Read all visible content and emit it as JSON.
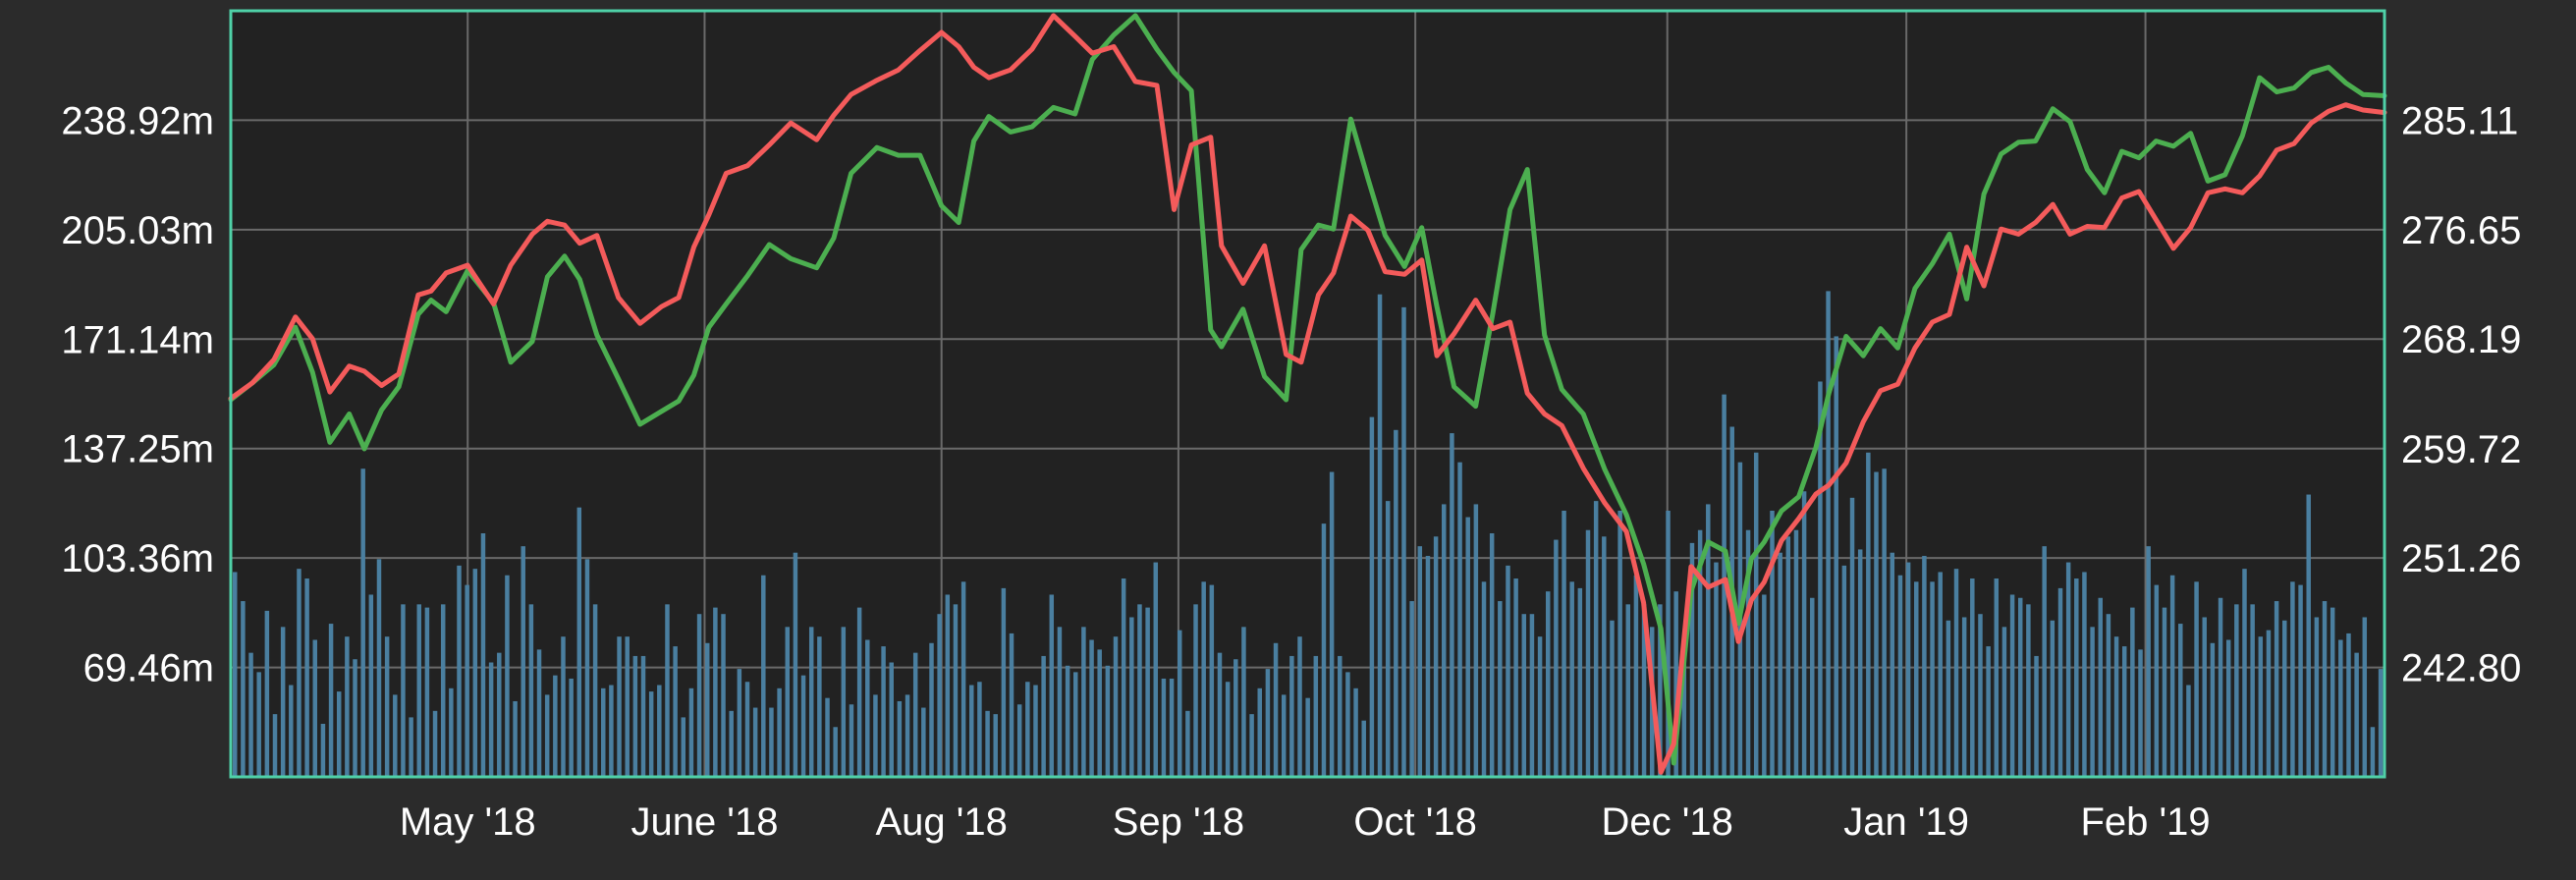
{
  "chart_data": {
    "type": "line",
    "title": "",
    "xlabel": "",
    "left_axis": {
      "label": "",
      "ticks": [
        "69.46m",
        "103.36m",
        "137.25m",
        "171.14m",
        "205.03m",
        "238.92m"
      ],
      "tick_values": [
        69.46,
        103.36,
        137.25,
        171.14,
        205.03,
        238.92
      ],
      "range": [
        35.57,
        272.81
      ],
      "unit": "m"
    },
    "right_axis": {
      "label": "",
      "ticks": [
        "242.80",
        "251.26",
        "259.72",
        "268.19",
        "276.65",
        "285.11"
      ],
      "tick_values": [
        242.8,
        251.26,
        259.72,
        268.19,
        276.65,
        285.11
      ],
      "range": [
        234.34,
        293.57
      ]
    },
    "x_axis": {
      "tick_labels": [
        "May '18",
        "June '18",
        "Aug '18",
        "Sep '18",
        "Oct '18",
        "Dec '18",
        "Jan '19",
        "Feb '19"
      ],
      "tick_positions": [
        0.11,
        0.22,
        0.33,
        0.44,
        0.55,
        0.667,
        0.778,
        0.889
      ]
    },
    "grid": true,
    "colors": {
      "background": "#2b2b2b",
      "plot_background": "#222222",
      "grid": "#6a6a6a",
      "frame": "#4fd1a8",
      "text": "#ffffff",
      "series_green": "#4caf50",
      "series_red": "#f45b5b",
      "volume": "#4a7fa0"
    },
    "series": [
      {
        "color": "#4caf50",
        "axis": "right",
        "x": [
          0,
          0.01,
          0.02,
          0.03,
          0.038,
          0.046,
          0.055,
          0.062,
          0.07,
          0.078,
          0.087,
          0.093,
          0.1,
          0.11,
          0.122,
          0.13,
          0.14,
          0.147,
          0.155,
          0.162,
          0.17,
          0.18,
          0.19,
          0.2,
          0.208,
          0.215,
          0.222,
          0.23,
          0.24,
          0.25,
          0.26,
          0.272,
          0.28,
          0.288,
          0.3,
          0.31,
          0.32,
          0.33,
          0.338,
          0.345,
          0.352,
          0.362,
          0.372,
          0.382,
          0.392,
          0.4,
          0.41,
          0.42,
          0.43,
          0.438,
          0.446,
          0.455,
          0.46,
          0.47,
          0.48,
          0.49,
          0.497,
          0.505,
          0.512,
          0.52,
          0.528,
          0.536,
          0.545,
          0.553,
          0.56,
          0.568,
          0.578,
          0.586,
          0.594,
          0.602,
          0.61,
          0.618,
          0.628,
          0.638,
          0.648,
          0.656,
          0.664,
          0.67,
          0.678,
          0.686,
          0.694,
          0.7,
          0.706,
          0.712,
          0.72,
          0.728,
          0.736,
          0.742,
          0.75,
          0.758,
          0.766,
          0.774,
          0.782,
          0.79,
          0.798,
          0.806,
          0.814,
          0.822,
          0.83,
          0.838,
          0.846,
          0.854,
          0.862,
          0.87,
          0.878,
          0.886,
          0.894,
          0.902,
          0.91,
          0.918,
          0.926,
          0.934,
          0.942,
          0.95,
          0.958,
          0.966,
          0.974,
          0.982,
          0.99,
          1.0
        ],
        "y": [
          263.5,
          264.8,
          266.2,
          269.1,
          265.6,
          260.2,
          262.4,
          259.7,
          262.7,
          264.5,
          270.1,
          271.2,
          270.3,
          273.5,
          271.0,
          266.4,
          268.0,
          273.0,
          274.6,
          272.8,
          268.5,
          265.1,
          261.6,
          262.6,
          263.4,
          265.4,
          269.1,
          270.9,
          273.1,
          275.5,
          274.4,
          273.7,
          276.0,
          281.0,
          283.0,
          282.4,
          282.4,
          278.5,
          277.2,
          283.5,
          285.4,
          284.2,
          284.6,
          286.1,
          285.6,
          289.8,
          291.7,
          293.2,
          290.6,
          288.8,
          287.4,
          268.9,
          267.6,
          270.5,
          265.3,
          263.5,
          275.1,
          277.0,
          276.7,
          285.2,
          280.6,
          276.2,
          273.8,
          276.8,
          270.7,
          264.5,
          263.0,
          270.2,
          278.2,
          281.3,
          268.5,
          264.3,
          262.4,
          258.1,
          254.6,
          250.8,
          245.8,
          235.4,
          248.7,
          252.5,
          251.8,
          246.2,
          251.2,
          252.5,
          254.9,
          256.0,
          259.8,
          264.0,
          268.4,
          266.9,
          269.0,
          267.5,
          272.1,
          274.0,
          276.3,
          271.3,
          279.4,
          282.5,
          283.4,
          283.5,
          286.0,
          285.0,
          281.3,
          279.5,
          282.7,
          282.2,
          283.5,
          283.1,
          284.1,
          280.4,
          280.9,
          283.9,
          288.4,
          287.3,
          287.6,
          288.8,
          289.2,
          288.0,
          287.1,
          287.0
        ]
      },
      {
        "color": "#f45b5b",
        "axis": "right",
        "x": [
          0,
          0.01,
          0.02,
          0.03,
          0.038,
          0.046,
          0.055,
          0.062,
          0.07,
          0.078,
          0.087,
          0.093,
          0.1,
          0.11,
          0.122,
          0.13,
          0.14,
          0.147,
          0.155,
          0.162,
          0.17,
          0.18,
          0.19,
          0.2,
          0.208,
          0.215,
          0.222,
          0.23,
          0.24,
          0.25,
          0.26,
          0.272,
          0.28,
          0.288,
          0.3,
          0.31,
          0.32,
          0.33,
          0.338,
          0.345,
          0.352,
          0.362,
          0.372,
          0.382,
          0.392,
          0.4,
          0.41,
          0.42,
          0.43,
          0.438,
          0.446,
          0.455,
          0.46,
          0.47,
          0.48,
          0.49,
          0.497,
          0.505,
          0.512,
          0.52,
          0.528,
          0.536,
          0.545,
          0.553,
          0.56,
          0.568,
          0.578,
          0.586,
          0.594,
          0.602,
          0.61,
          0.618,
          0.628,
          0.638,
          0.648,
          0.656,
          0.664,
          0.67,
          0.678,
          0.686,
          0.694,
          0.7,
          0.706,
          0.712,
          0.72,
          0.728,
          0.736,
          0.742,
          0.75,
          0.758,
          0.766,
          0.774,
          0.782,
          0.79,
          0.798,
          0.806,
          0.814,
          0.822,
          0.83,
          0.838,
          0.846,
          0.854,
          0.862,
          0.87,
          0.878,
          0.886,
          0.894,
          0.902,
          0.91,
          0.918,
          0.926,
          0.934,
          0.942,
          0.95,
          0.958,
          0.966,
          0.974,
          0.982,
          0.99,
          1.0
        ],
        "y": [
          263.6,
          264.8,
          266.6,
          269.9,
          268.2,
          264.1,
          266.1,
          265.7,
          264.6,
          265.5,
          271.6,
          271.9,
          273.3,
          273.9,
          270.9,
          273.9,
          276.3,
          277.3,
          277.0,
          275.6,
          276.2,
          271.4,
          269.4,
          270.7,
          271.4,
          275.3,
          277.8,
          281.0,
          281.6,
          283.2,
          284.9,
          283.6,
          285.5,
          287.1,
          288.2,
          289.0,
          290.5,
          291.9,
          290.8,
          289.2,
          288.4,
          289.0,
          290.6,
          293.2,
          291.6,
          290.3,
          290.8,
          288.1,
          287.8,
          278.2,
          283.2,
          283.8,
          275.4,
          272.5,
          275.4,
          267.0,
          266.4,
          271.6,
          273.3,
          277.7,
          276.6,
          273.4,
          273.2,
          274.3,
          266.9,
          268.6,
          271.2,
          269.0,
          269.5,
          264.0,
          262.4,
          261.5,
          258.2,
          255.5,
          253.3,
          247.8,
          234.7,
          236.9,
          250.6,
          249.0,
          249.6,
          244.8,
          248.0,
          249.4,
          252.6,
          254.3,
          256.2,
          256.9,
          258.6,
          261.8,
          264.2,
          264.7,
          267.5,
          269.5,
          270.1,
          275.3,
          272.3,
          276.7,
          276.3,
          277.2,
          278.6,
          276.3,
          276.9,
          276.8,
          279.1,
          279.6,
          277.4,
          275.2,
          276.8,
          279.5,
          279.8,
          279.5,
          280.8,
          282.8,
          283.3,
          284.9,
          285.8,
          286.3,
          285.9,
          285.7
        ]
      }
    ],
    "volume": {
      "axis": "left",
      "values_m": [
        99,
        90,
        74,
        68,
        87,
        55,
        82,
        64,
        100,
        97,
        78,
        52,
        83,
        62,
        79,
        72,
        131,
        92,
        103,
        79,
        61,
        89,
        54,
        89,
        88,
        56,
        89,
        63,
        101,
        95,
        100,
        111,
        71,
        74,
        98,
        59,
        107,
        89,
        75,
        61,
        67,
        79,
        66,
        119,
        103,
        89,
        63,
        64,
        79,
        79,
        73,
        73,
        62,
        64,
        89,
        76,
        54,
        63,
        86,
        77,
        88,
        86,
        56,
        69,
        65,
        57,
        98,
        57,
        63,
        82,
        105,
        67,
        82,
        79,
        60,
        51,
        82,
        58,
        88,
        78,
        61,
        76,
        71,
        59,
        61,
        74,
        57,
        77,
        86,
        92,
        89,
        96,
        64,
        65,
        56,
        55,
        94,
        80,
        58,
        65,
        64,
        73,
        92,
        82,
        70,
        68,
        82,
        78,
        75,
        70,
        79,
        97,
        85,
        89,
        88,
        102,
        66,
        66,
        81,
        56,
        89,
        96,
        95,
        74,
        65,
        72,
        82,
        55,
        63,
        69,
        77,
        61,
        73,
        79,
        60,
        73,
        114,
        130,
        73,
        68,
        63,
        53,
        147,
        185,
        121,
        143,
        181,
        90,
        107,
        104,
        110,
        120,
        142,
        133,
        116,
        120,
        96,
        111,
        90,
        101,
        97,
        86,
        86,
        79,
        93,
        109,
        118,
        96,
        94,
        112,
        121,
        110,
        84,
        118,
        89,
        98,
        89,
        82,
        89,
        118,
        93,
        76,
        108,
        112,
        120,
        102,
        154,
        144,
        133,
        112,
        136,
        92,
        118,
        105,
        110,
        112,
        124,
        91,
        158,
        186,
        172,
        101,
        122,
        106,
        136,
        130,
        131,
        105,
        98,
        102,
        96,
        104,
        96,
        99,
        84,
        100,
        85,
        97,
        86,
        76,
        97,
        82,
        92,
        91,
        89,
        73,
        107,
        84,
        94,
        102,
        97,
        99,
        82,
        91,
        86,
        79,
        76,
        88,
        75,
        107,
        95,
        88,
        98,
        83,
        64,
        96,
        85,
        77,
        91,
        78,
        89,
        100,
        89,
        79,
        81,
        90,
        84,
        96,
        95,
        123,
        85,
        90,
        88,
        78,
        80,
        74,
        85,
        51,
        69
      ]
    }
  }
}
